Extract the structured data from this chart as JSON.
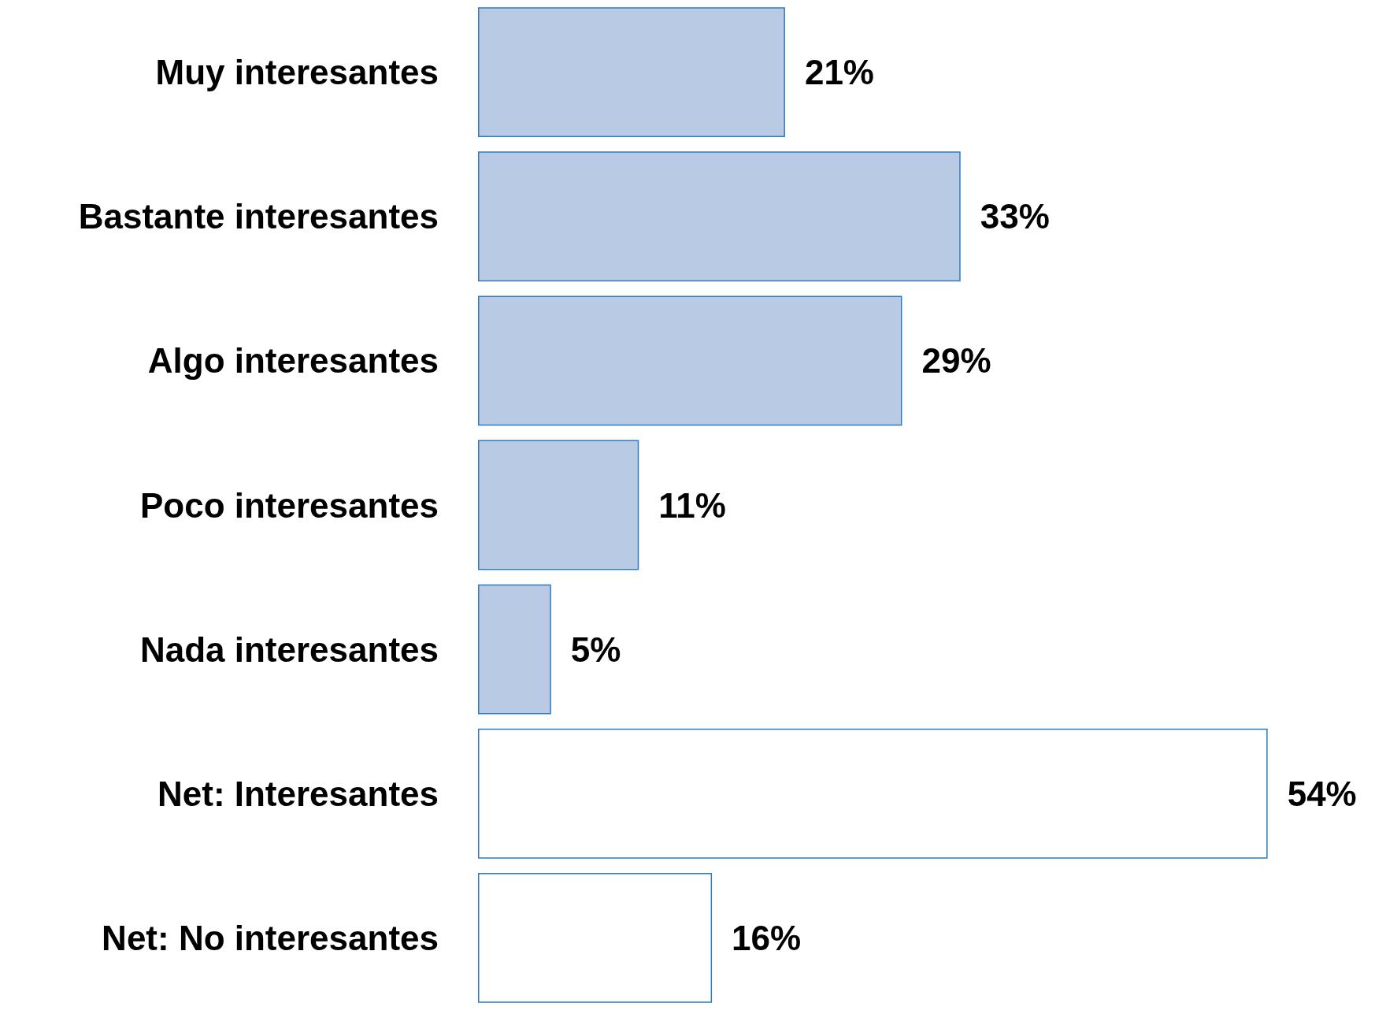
{
  "chart_data": {
    "type": "bar",
    "orientation": "horizontal",
    "categories": [
      "Muy interesantes",
      "Bastante interesantes",
      "Algo interesantes",
      "Poco interesantes",
      "Nada interesantes",
      "Net: Interesantes",
      "Net: No interesantes"
    ],
    "values": [
      21,
      33,
      29,
      11,
      5,
      54,
      16
    ],
    "colors": [
      "#b9cbe4",
      "#b9cbe4",
      "#b9cbe4",
      "#b9cbe4",
      "#b9cbe4",
      "#ffffff",
      "#ffffff"
    ],
    "value_labels": [
      "21%",
      "33%",
      "29%",
      "11%",
      "5%",
      "54%",
      "16%"
    ]
  }
}
